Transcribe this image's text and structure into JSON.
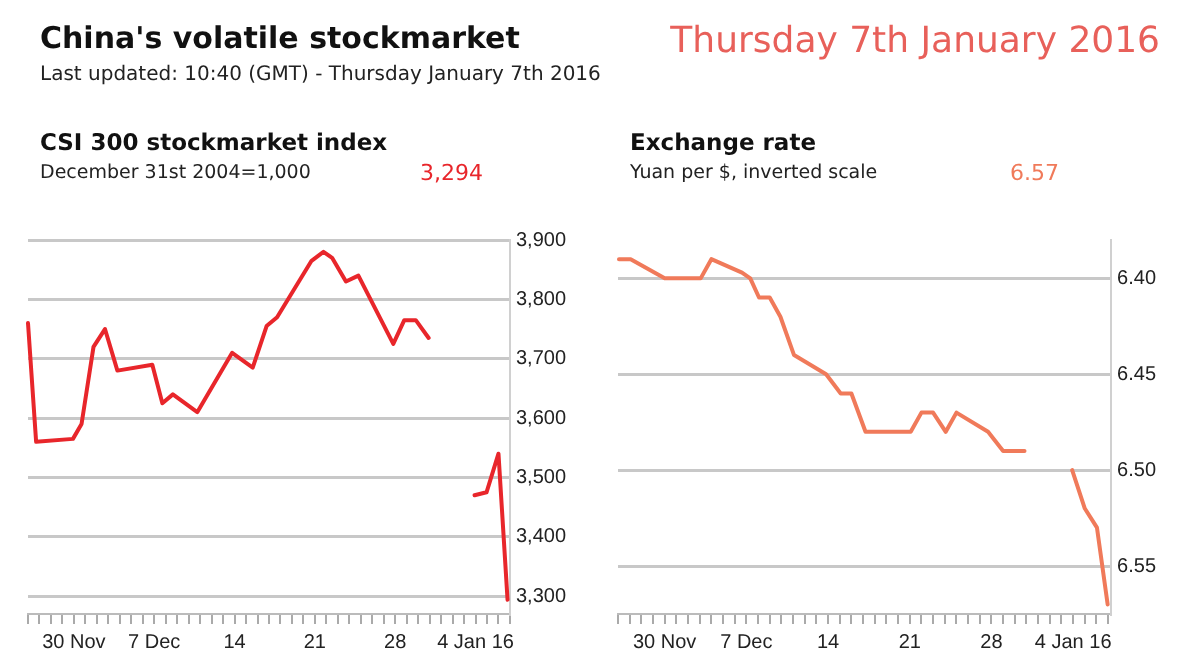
{
  "chart_data": [
    {
      "type": "other",
      "title": "China's volatile stockmarket",
      "subtitle": "Last updated: 10:40 (GMT) - Thursday January 7th 2016",
      "annotations": [
        "Thursday 7th January 2016"
      ]
    },
    {
      "type": "line",
      "title": "CSI 300 stockmarket index",
      "subtitle": "December 31st 2004=1,000",
      "annotations": [
        "3,294"
      ],
      "grid": "y",
      "legend": false,
      "marker": "none",
      "series": [
        {
          "color": "#e8262b",
          "x": [
            "2015-11-26T00:00",
            "2015-11-26T17:00",
            "2015-11-29T22:00",
            "2015-11-30T16:00",
            "2015-12-01T17:00",
            "2015-12-02T17:00",
            "2015-12-03T19:00",
            "2015-12-06T20:00",
            "2015-12-07T17:00",
            "2015-12-08T15:00",
            "2015-12-10T18:00",
            "2015-12-13T19:00",
            "2015-12-15T14:00",
            "2015-12-16T19:00",
            "2015-12-17T17:00",
            "2015-12-20T17:00",
            "2015-12-21T18:00",
            "2015-12-22T12:00",
            "2015-12-23T17:00",
            "2015-12-24T19:00",
            "2015-12-27T20:00",
            "2015-12-28T19:00",
            "2015-12-29T19:00",
            "2015-12-30T22:00",
            "2016-01-02T00:00",
            "2016-01-03T22:00",
            "2016-01-04T23:00",
            "2016-01-06T00:00",
            "2016-01-06T19:00"
          ],
          "values": [
            3760,
            3560,
            3565,
            3590,
            3720,
            3750,
            3680,
            3690,
            3625,
            3640,
            3610,
            3710,
            3685,
            3755,
            3770,
            3865,
            3880,
            3870,
            3830,
            3840,
            3725,
            3765,
            3765,
            3735,
            null,
            3470,
            3475,
            3540,
            3294
          ]
        }
      ],
      "xlim": [
        "2015-11-26T00:00",
        "2016-01-07T00:00"
      ],
      "xticks": [
        {
          "value": "2015-11-26",
          "label": null
        },
        {
          "value": "2015-11-27",
          "label": null
        },
        {
          "value": "2015-11-28",
          "label": null
        },
        {
          "value": "2015-11-29",
          "label": null
        },
        {
          "value": "2015-11-30",
          "label": "30 Nov"
        },
        {
          "value": "2015-12-01",
          "label": null
        },
        {
          "value": "2015-12-02",
          "label": null
        },
        {
          "value": "2015-12-03",
          "label": null
        },
        {
          "value": "2015-12-04",
          "label": null
        },
        {
          "value": "2015-12-05",
          "label": null
        },
        {
          "value": "2015-12-06",
          "label": null
        },
        {
          "value": "2015-12-07",
          "label": "7 Dec"
        },
        {
          "value": "2015-12-08",
          "label": null
        },
        {
          "value": "2015-12-09",
          "label": null
        },
        {
          "value": "2015-12-10",
          "label": null
        },
        {
          "value": "2015-12-11",
          "label": null
        },
        {
          "value": "2015-12-12",
          "label": null
        },
        {
          "value": "2015-12-13",
          "label": null
        },
        {
          "value": "2015-12-14",
          "label": "14"
        },
        {
          "value": "2015-12-15",
          "label": null
        },
        {
          "value": "2015-12-16",
          "label": null
        },
        {
          "value": "2015-12-17",
          "label": null
        },
        {
          "value": "2015-12-18",
          "label": null
        },
        {
          "value": "2015-12-19",
          "label": null
        },
        {
          "value": "2015-12-20",
          "label": null
        },
        {
          "value": "2015-12-21",
          "label": "21"
        },
        {
          "value": "2015-12-22",
          "label": null
        },
        {
          "value": "2015-12-23",
          "label": null
        },
        {
          "value": "2015-12-24",
          "label": null
        },
        {
          "value": "2015-12-25",
          "label": null
        },
        {
          "value": "2015-12-26",
          "label": null
        },
        {
          "value": "2015-12-27",
          "label": null
        },
        {
          "value": "2015-12-28",
          "label": "28"
        },
        {
          "value": "2015-12-29",
          "label": null
        },
        {
          "value": "2015-12-30",
          "label": null
        },
        {
          "value": "2015-12-31",
          "label": null
        },
        {
          "value": "2016-01-01",
          "label": null
        },
        {
          "value": "2016-01-02",
          "label": null
        },
        {
          "value": "2016-01-03",
          "label": null
        },
        {
          "value": "2016-01-04",
          "label": "4 Jan 16"
        },
        {
          "value": "2016-01-05",
          "label": null
        },
        {
          "value": "2016-01-06",
          "label": null
        },
        {
          "value": "2016-01-07",
          "label": null
        }
      ],
      "ylim": [
        3270,
        3900
      ],
      "yticks": [
        {
          "value": 3300,
          "label": "3,300"
        },
        {
          "value": 3400,
          "label": "3,400"
        },
        {
          "value": 3500,
          "label": "3,500"
        },
        {
          "value": 3600,
          "label": "3,600"
        },
        {
          "value": 3700,
          "label": "3,700"
        },
        {
          "value": 3800,
          "label": "3,800"
        },
        {
          "value": 3900,
          "label": "3,900"
        }
      ]
    },
    {
      "type": "line",
      "title": "Exchange rate",
      "subtitle": "Yuan per $, inverted scale",
      "annotations": [
        "6.57"
      ],
      "grid": "y",
      "legend": false,
      "marker": "none",
      "series": [
        {
          "color": "#f07a5a",
          "x": [
            "2015-11-26T02:00",
            "2015-11-27T02:00",
            "2015-11-30T00:00",
            "2015-12-03T02:00",
            "2015-12-04T00:00",
            "2015-12-06T15:00",
            "2015-12-07T08:00",
            "2015-12-08T02:00",
            "2015-12-09T00:00",
            "2015-12-09T22:00",
            "2015-12-11T02:00",
            "2015-12-13T20:00",
            "2015-12-15T02:00",
            "2015-12-16T00:00",
            "2015-12-17T05:00",
            "2015-12-21T02:00",
            "2015-12-22T00:00",
            "2015-12-23T00:00",
            "2015-12-24T02:00",
            "2015-12-25T00:00",
            "2015-12-27T17:00",
            "2015-12-29T00:00",
            "2015-12-30T20:00",
            "2016-01-02T00:00",
            "2016-01-03T22:00",
            "2016-01-05T00:00",
            "2016-01-06T01:00",
            "2016-01-06T23:00"
          ],
          "values": [
            6.39,
            6.39,
            6.4,
            6.4,
            6.39,
            6.397,
            6.4,
            6.41,
            6.41,
            6.42,
            6.44,
            6.45,
            6.46,
            6.46,
            6.48,
            6.48,
            6.47,
            6.47,
            6.48,
            6.47,
            6.48,
            6.49,
            6.49,
            null,
            6.5,
            6.52,
            6.53,
            6.57
          ]
        }
      ],
      "xlim": [
        "2015-11-26T00:00",
        "2016-01-07T06:00"
      ],
      "xticks": [
        {
          "value": "2015-11-26",
          "label": null
        },
        {
          "value": "2015-11-27",
          "label": null
        },
        {
          "value": "2015-11-28",
          "label": null
        },
        {
          "value": "2015-11-29",
          "label": null
        },
        {
          "value": "2015-11-30",
          "label": "30 Nov"
        },
        {
          "value": "2015-12-01",
          "label": null
        },
        {
          "value": "2015-12-02",
          "label": null
        },
        {
          "value": "2015-12-03",
          "label": null
        },
        {
          "value": "2015-12-04",
          "label": null
        },
        {
          "value": "2015-12-05",
          "label": null
        },
        {
          "value": "2015-12-06",
          "label": null
        },
        {
          "value": "2015-12-07",
          "label": "7 Dec"
        },
        {
          "value": "2015-12-08",
          "label": null
        },
        {
          "value": "2015-12-09",
          "label": null
        },
        {
          "value": "2015-12-10",
          "label": null
        },
        {
          "value": "2015-12-11",
          "label": null
        },
        {
          "value": "2015-12-12",
          "label": null
        },
        {
          "value": "2015-12-13",
          "label": null
        },
        {
          "value": "2015-12-14",
          "label": "14"
        },
        {
          "value": "2015-12-15",
          "label": null
        },
        {
          "value": "2015-12-16",
          "label": null
        },
        {
          "value": "2015-12-17",
          "label": null
        },
        {
          "value": "2015-12-18",
          "label": null
        },
        {
          "value": "2015-12-19",
          "label": null
        },
        {
          "value": "2015-12-20",
          "label": null
        },
        {
          "value": "2015-12-21",
          "label": "21"
        },
        {
          "value": "2015-12-22",
          "label": null
        },
        {
          "value": "2015-12-23",
          "label": null
        },
        {
          "value": "2015-12-24",
          "label": null
        },
        {
          "value": "2015-12-25",
          "label": null
        },
        {
          "value": "2015-12-26",
          "label": null
        },
        {
          "value": "2015-12-27",
          "label": null
        },
        {
          "value": "2015-12-28",
          "label": "28"
        },
        {
          "value": "2015-12-29",
          "label": null
        },
        {
          "value": "2015-12-30",
          "label": null
        },
        {
          "value": "2015-12-31",
          "label": null
        },
        {
          "value": "2016-01-01",
          "label": null
        },
        {
          "value": "2016-01-02",
          "label": null
        },
        {
          "value": "2016-01-03",
          "label": null
        },
        {
          "value": "2016-01-04",
          "label": "4 Jan 16"
        },
        {
          "value": "2016-01-05",
          "label": null
        },
        {
          "value": "2016-01-06",
          "label": null
        },
        {
          "value": "2016-01-07",
          "label": null
        }
      ],
      "ylim": [
        6.575,
        6.38
      ],
      "yticks": [
        {
          "value": 6.4,
          "label": "6.40"
        },
        {
          "value": 6.45,
          "label": "6.45"
        },
        {
          "value": 6.5,
          "label": "6.50"
        },
        {
          "value": 6.55,
          "label": "6.55"
        }
      ]
    }
  ]
}
